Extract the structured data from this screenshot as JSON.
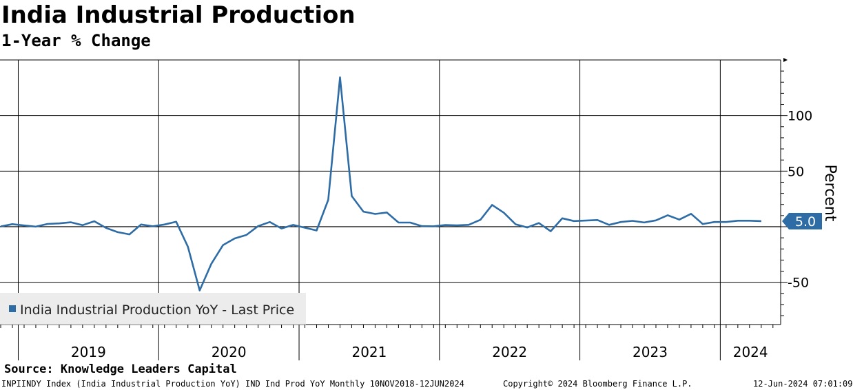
{
  "title": "India Industrial Production",
  "subtitle": "1-Year % Change",
  "source": "Source: Knowledge Leaders Capital",
  "footer": {
    "left": "INPIINDY Index (India Industrial Production  YoY) IND Ind Prod YoY  Monthly 10NOV2018-12JUN2024",
    "middle": "Copyright© 2024 Bloomberg Finance L.P.",
    "right": "12-Jun-2024 07:01:09"
  },
  "chart_data": {
    "type": "line",
    "ylabel": "Percent",
    "ylim": [
      -88,
      150
    ],
    "yticks": [
      -50,
      50,
      100
    ],
    "xlim": [
      2018.87,
      2024.43
    ],
    "year_labels": [
      "2019",
      "2020",
      "2021",
      "2022",
      "2023",
      "2024"
    ],
    "year_bounds": [
      2019,
      2020,
      2021,
      2022,
      2023,
      2024
    ],
    "grid": true,
    "legend": {
      "position": "bottom-left",
      "entries": [
        "India Industrial Production YoY - Last Price"
      ]
    },
    "last_value_label": "5.0",
    "series": [
      {
        "name": "India Industrial Production YoY - Last Price",
        "color": "#2e6ca6",
        "x": [
          2018.875,
          2018.958,
          2019.042,
          2019.125,
          2019.208,
          2019.292,
          2019.375,
          2019.458,
          2019.542,
          2019.625,
          2019.708,
          2019.792,
          2019.875,
          2019.958,
          2020.042,
          2020.125,
          2020.208,
          2020.292,
          2020.375,
          2020.458,
          2020.542,
          2020.625,
          2020.708,
          2020.792,
          2020.875,
          2020.958,
          2021.042,
          2021.125,
          2021.208,
          2021.292,
          2021.375,
          2021.458,
          2021.542,
          2021.625,
          2021.708,
          2021.792,
          2021.875,
          2021.958,
          2022.042,
          2022.125,
          2022.208,
          2022.292,
          2022.375,
          2022.458,
          2022.542,
          2022.625,
          2022.708,
          2022.792,
          2022.875,
          2022.958,
          2023.042,
          2023.125,
          2023.208,
          2023.292,
          2023.375,
          2023.458,
          2023.542,
          2023.625,
          2023.708,
          2023.792,
          2023.875,
          2023.958,
          2024.042,
          2024.125,
          2024.208,
          2024.292
        ],
        "values": [
          0.2,
          2.3,
          1.1,
          0.1,
          2.5,
          3.0,
          4.0,
          1.4,
          4.9,
          -1.1,
          -4.9,
          -6.9,
          2.0,
          0.4,
          2.0,
          4.5,
          -18.0,
          -57.3,
          -33.4,
          -16.6,
          -10.5,
          -7.4,
          0.5,
          4.2,
          -1.6,
          1.6,
          -0.9,
          -3.4,
          24.2,
          134.4,
          27.6,
          13.6,
          11.5,
          12.8,
          3.8,
          3.7,
          0.5,
          0.4,
          1.5,
          1.2,
          1.7,
          6.3,
          19.6,
          12.6,
          2.2,
          -0.7,
          3.3,
          -4.1,
          7.6,
          5.1,
          5.5,
          6.0,
          1.7,
          4.2,
          5.3,
          3.8,
          5.7,
          10.3,
          6.4,
          11.6,
          2.4,
          4.2,
          4.2,
          5.4,
          5.4,
          5.0
        ]
      }
    ]
  }
}
